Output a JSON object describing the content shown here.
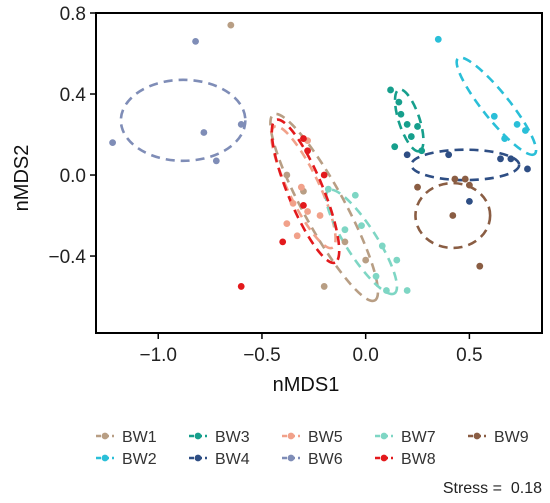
{
  "chart_data": {
    "type": "scatter",
    "xlabel": "nMDS1",
    "ylabel": "nMDS2",
    "xlim": [
      -1.3,
      0.85
    ],
    "ylim": [
      -0.78,
      0.8
    ],
    "x_ticks": [
      -1.0,
      -0.5,
      0.0,
      0.5
    ],
    "x_tick_labels": [
      "−1.0",
      "−0.5",
      "0.0",
      "0.5"
    ],
    "y_ticks": [
      -0.4,
      0.0,
      0.4,
      0.8
    ],
    "y_tick_labels": [
      "−0.4",
      "0.0",
      "0.4",
      "0.8"
    ],
    "grid": false,
    "legend_position": "bottom",
    "annotation": "Stress =  0.18",
    "series": [
      {
        "name": "BW1",
        "color": "#B89E84",
        "points": [
          [
            -0.65,
            0.74
          ],
          [
            -0.38,
            0.0
          ],
          [
            -0.3,
            -0.08
          ],
          [
            -0.2,
            -0.55
          ],
          [
            -0.1,
            -0.33
          ],
          [
            0.0,
            -0.42
          ]
        ],
        "ellipse": {
          "cx": -0.2,
          "cy": -0.16,
          "rx": 0.52,
          "ry": 0.1,
          "angle": -62
        }
      },
      {
        "name": "BW2",
        "color": "#2ABFD8",
        "points": [
          [
            0.35,
            0.67
          ],
          [
            0.62,
            0.29
          ],
          [
            0.67,
            0.18
          ],
          [
            0.73,
            0.25
          ],
          [
            0.77,
            0.22
          ]
        ],
        "ellipse": {
          "cx": 0.63,
          "cy": 0.34,
          "rx": 0.3,
          "ry": 0.065,
          "angle": -52
        }
      },
      {
        "name": "BW3",
        "color": "#169F8C",
        "points": [
          [
            0.16,
            0.36
          ],
          [
            0.17,
            0.3
          ],
          [
            0.2,
            0.25
          ],
          [
            0.22,
            0.19
          ],
          [
            0.25,
            0.24
          ],
          [
            0.27,
            0.12
          ],
          [
            0.14,
            0.14
          ],
          [
            0.12,
            0.42
          ]
        ],
        "ellipse": {
          "cx": 0.21,
          "cy": 0.27,
          "rx": 0.16,
          "ry": 0.05,
          "angle": -72
        }
      },
      {
        "name": "BW4",
        "color": "#2E4E84",
        "points": [
          [
            0.2,
            0.1
          ],
          [
            0.4,
            0.1
          ],
          [
            0.5,
            -0.13
          ],
          [
            0.65,
            0.08
          ],
          [
            0.7,
            0.08
          ],
          [
            0.78,
            0.03
          ]
        ],
        "ellipse": {
          "cx": 0.48,
          "cy": 0.05,
          "rx": 0.26,
          "ry": 0.075,
          "angle": 0
        }
      },
      {
        "name": "BW5",
        "color": "#F1A18A",
        "points": [
          [
            -0.28,
            0.17
          ],
          [
            -0.31,
            -0.06
          ],
          [
            -0.35,
            -0.14
          ],
          [
            -0.22,
            -0.2
          ],
          [
            -0.38,
            -0.24
          ],
          [
            -0.33,
            -0.3
          ],
          [
            -0.28,
            -0.18
          ]
        ],
        "ellipse": {
          "cx": -0.3,
          "cy": -0.06,
          "rx": 0.33,
          "ry": 0.075,
          "angle": -65
        }
      },
      {
        "name": "BW6",
        "color": "#7F8DB7",
        "points": [
          [
            -1.22,
            0.16
          ],
          [
            -0.78,
            0.21
          ],
          [
            -0.82,
            0.66
          ],
          [
            -0.72,
            0.07
          ],
          [
            -0.6,
            0.25
          ]
        ],
        "ellipse": {
          "cx": -0.88,
          "cy": 0.27,
          "rx": 0.3,
          "ry": 0.2,
          "angle": 0
        }
      },
      {
        "name": "BW7",
        "color": "#7ED6C4",
        "points": [
          [
            -0.18,
            -0.07
          ],
          [
            -0.05,
            -0.1
          ],
          [
            -0.1,
            -0.27
          ],
          [
            0.05,
            -0.5
          ],
          [
            0.1,
            -0.57
          ],
          [
            0.2,
            -0.57
          ],
          [
            0.15,
            -0.42
          ],
          [
            0.08,
            -0.35
          ],
          [
            -0.02,
            -0.25
          ]
        ],
        "ellipse": {
          "cx": -0.02,
          "cy": -0.33,
          "rx": 0.3,
          "ry": 0.075,
          "angle": -58
        }
      },
      {
        "name": "BW8",
        "color": "#E3191C",
        "points": [
          [
            -0.3,
            0.18
          ],
          [
            -0.28,
            0.12
          ],
          [
            -0.6,
            -0.55
          ],
          [
            -0.4,
            -0.33
          ],
          [
            -0.3,
            -0.15
          ],
          [
            -0.2,
            0.0
          ]
        ],
        "ellipse": {
          "cx": -0.29,
          "cy": -0.08,
          "rx": 0.38,
          "ry": 0.085,
          "angle": -68
        }
      },
      {
        "name": "BW9",
        "color": "#8A5D43",
        "points": [
          [
            0.25,
            -0.06
          ],
          [
            0.43,
            -0.02
          ],
          [
            0.48,
            -0.02
          ],
          [
            0.55,
            -0.45
          ],
          [
            0.42,
            -0.2
          ],
          [
            0.5,
            -0.05
          ]
        ],
        "ellipse": {
          "cx": 0.42,
          "cy": -0.2,
          "rx": 0.18,
          "ry": 0.16,
          "angle": 0
        }
      }
    ]
  }
}
